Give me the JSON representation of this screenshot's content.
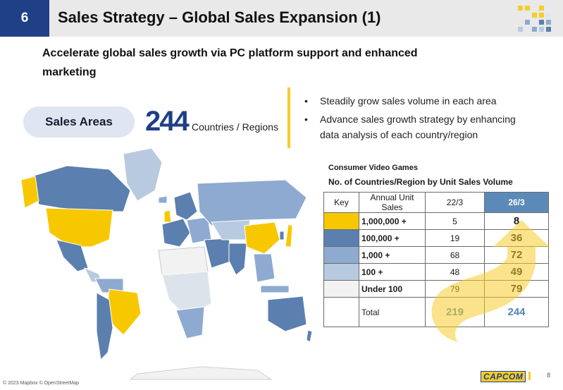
{
  "header": {
    "page_number": "6",
    "title": "Sales Strategy – Global Sales Expansion (1)"
  },
  "subtitle": "Accelerate global sales growth via PC platform support and enhanced marketing",
  "sales_areas": {
    "label": "Sales Areas",
    "count": "244",
    "unit": "Countries / Regions"
  },
  "bullets": [
    "Steadily grow sales volume in each area",
    "Advance sales growth strategy by enhancing data analysis of each country/region"
  ],
  "table": {
    "caption_1": "Consumer Video Games",
    "caption_2": "No. of Countries/Region by Unit Sales Volume",
    "headers": [
      "Key",
      "Annual Unit Sales",
      "22/3",
      "26/3"
    ],
    "rows": [
      {
        "key_color": "#f7c800",
        "label": "1,000,000 +",
        "v1": "5",
        "v2": "8"
      },
      {
        "key_color": "#5b7fae",
        "label": "100,000 +",
        "v1": "19",
        "v2": "36"
      },
      {
        "key_color": "#8eaad0",
        "label": "1,000 +",
        "v1": "68",
        "v2": "72"
      },
      {
        "key_color": "#b7cadf",
        "label": "100 +",
        "v1": "48",
        "v2": "49"
      },
      {
        "key_color": "#f2f2f2",
        "label": "Under 100",
        "v1": "79",
        "v2": "79"
      }
    ],
    "total": {
      "label": "Total",
      "v1": "219",
      "v2": "244"
    }
  },
  "map_attribution": "© 2023 Mapbox © OpenStreetMap",
  "logo_text": "CAPCOM",
  "slide_number": "8",
  "colors": {
    "accent_navy": "#1f3f86",
    "accent_yellow": "#f6cc29"
  }
}
